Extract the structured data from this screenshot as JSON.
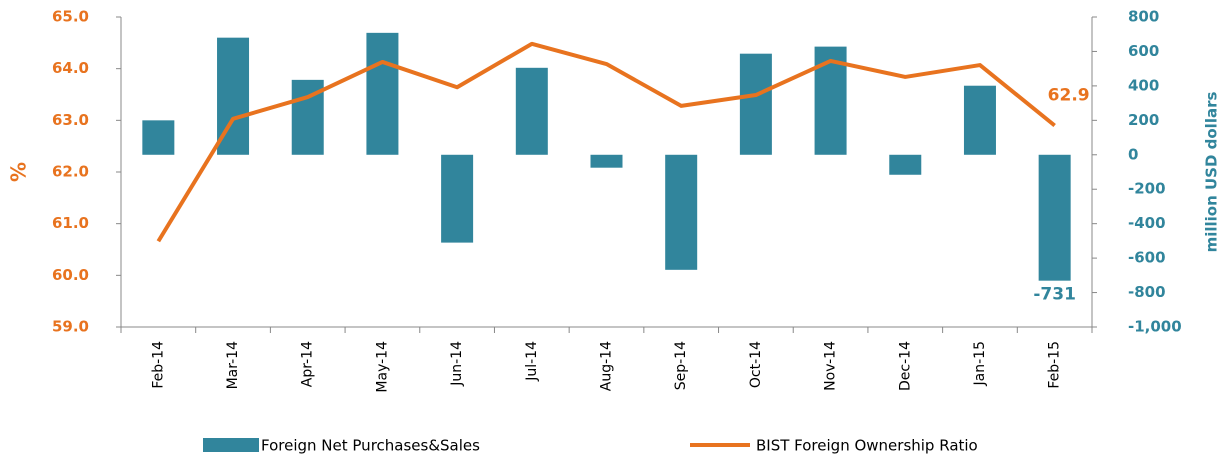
{
  "chart_data": {
    "type": "bar_line",
    "y_label": "%",
    "y2_label": "million USD dollars",
    "categories": [
      "Feb-14",
      "Mar-14",
      "Apr-14",
      "May-14",
      "Jun-14",
      "Jul-14",
      "Aug-14",
      "Sep-14",
      "Oct-14",
      "Nov-14",
      "Dec-14",
      "Jan-15",
      "Feb-15"
    ],
    "series": [
      {
        "name": "Foreign Net Purchases&Sales",
        "type": "bar",
        "axis": "y2",
        "color": "#31859c",
        "values": [
          200,
          680,
          435,
          708,
          -510,
          505,
          -75,
          -668,
          587,
          628,
          -116,
          401,
          -731
        ]
      },
      {
        "name": "BIST Foreign Ownership Ratio",
        "type": "line",
        "axis": "y",
        "color": "#e8731f",
        "values": [
          60.66,
          63.03,
          63.45,
          64.13,
          63.64,
          64.48,
          64.09,
          63.28,
          63.49,
          64.15,
          63.84,
          64.07,
          62.9
        ]
      }
    ],
    "ylim": [
      59,
      65
    ],
    "yticks": [
      {
        "value": 59,
        "label": "59.0"
      },
      {
        "value": 60,
        "label": "60.0"
      },
      {
        "value": 61,
        "label": "61.0"
      },
      {
        "value": 62,
        "label": "62.0"
      },
      {
        "value": 63,
        "label": "63.0"
      },
      {
        "value": 64,
        "label": "64.0"
      },
      {
        "value": 65,
        "label": "65.0"
      }
    ],
    "y2lim": [
      -1000,
      800
    ],
    "y2ticks": [
      {
        "value": -1000,
        "label": "-1,000"
      },
      -800,
      -600,
      -400,
      -200,
      0,
      200,
      400,
      600,
      800
    ],
    "grid": false,
    "legend": "bottom"
  }
}
